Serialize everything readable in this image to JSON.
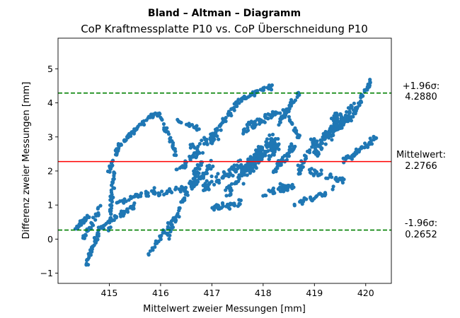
{
  "chart_data": {
    "type": "scatter",
    "title": "Bland – Altman – Diagramm",
    "subtitle": "CoP Kraftmessplatte P10 vs. CoP Überschneidung P10",
    "xlabel": "Mittelwert zweier Messungen [mm]",
    "ylabel": "Differenz zweier Messungen [mm]",
    "xlim": [
      414.0,
      420.5
    ],
    "ylim": [
      -1.3,
      5.9
    ],
    "x_ticks": [
      415,
      416,
      417,
      418,
      419,
      420
    ],
    "y_ticks": [
      -1,
      0,
      1,
      2,
      3,
      4,
      5
    ],
    "grid": false,
    "point_color": "#1f77b4",
    "mean_line": {
      "value": 2.2766,
      "color": "#ff0000",
      "label": "Mittelwert:",
      "value_text": "2.2766"
    },
    "upper_loa": {
      "value": 4.288,
      "color": "#008000",
      "label": "+1.96σ:",
      "value_text": "4.2880"
    },
    "lower_loa": {
      "value": 0.2652,
      "color": "#008000",
      "label": "-1.96σ:",
      "value_text": "0.2652"
    },
    "segments": [
      {
        "from": [
          414.35,
          0.3
        ],
        "to": [
          414.6,
          0.7
        ],
        "n": 25,
        "spread": 0.12
      },
      {
        "from": [
          414.5,
          0.0
        ],
        "to": [
          414.85,
          0.95
        ],
        "n": 30,
        "spread": 0.15
      },
      {
        "from": [
          414.55,
          -0.7
        ],
        "to": [
          414.8,
          0.2
        ],
        "n": 40,
        "spread": 0.12
      },
      {
        "from": [
          414.8,
          0.3
        ],
        "to": [
          415.5,
          1.0
        ],
        "n": 50,
        "spread": 0.1
      },
      {
        "from": [
          415.0,
          0.3
        ],
        "to": [
          415.1,
          2.0
        ],
        "n": 40,
        "spread": 0.12
      },
      {
        "from": [
          415.0,
          2.0
        ],
        "to": [
          415.2,
          2.8
        ],
        "n": 30,
        "spread": 0.12
      },
      {
        "from": [
          415.2,
          2.8
        ],
        "to": [
          415.8,
          3.6
        ],
        "n": 45,
        "spread": 0.1
      },
      {
        "from": [
          415.8,
          3.6
        ],
        "to": [
          416.0,
          3.7
        ],
        "n": 18,
        "spread": 0.1
      },
      {
        "from": [
          416.0,
          3.6
        ],
        "to": [
          416.3,
          2.5
        ],
        "n": 30,
        "spread": 0.15
      },
      {
        "from": [
          415.15,
          1.1
        ],
        "to": [
          415.9,
          1.4
        ],
        "n": 40,
        "spread": 0.12
      },
      {
        "from": [
          415.9,
          1.3
        ],
        "to": [
          416.5,
          1.5
        ],
        "n": 30,
        "spread": 0.12
      },
      {
        "from": [
          415.6,
          -0.8
        ],
        "to": [
          416.2,
          0.5
        ],
        "n": 25,
        "spread": 0.1
      },
      {
        "from": [
          416.1,
          0.0
        ],
        "to": [
          416.8,
          2.3
        ],
        "n": 70,
        "spread": 0.2
      },
      {
        "from": [
          416.3,
          2.0
        ],
        "to": [
          416.8,
          2.6
        ],
        "n": 30,
        "spread": 0.15
      },
      {
        "from": [
          416.3,
          3.5
        ],
        "to": [
          416.8,
          3.2
        ],
        "n": 20,
        "spread": 0.1
      },
      {
        "from": [
          416.6,
          1.5
        ],
        "to": [
          417.0,
          2.2
        ],
        "n": 40,
        "spread": 0.2
      },
      {
        "from": [
          416.6,
          2.7
        ],
        "to": [
          417.1,
          3.0
        ],
        "n": 30,
        "spread": 0.2
      },
      {
        "from": [
          417.0,
          3.0
        ],
        "to": [
          417.5,
          4.0
        ],
        "n": 40,
        "spread": 0.15
      },
      {
        "from": [
          417.5,
          4.0
        ],
        "to": [
          417.8,
          4.3
        ],
        "n": 20,
        "spread": 0.1
      },
      {
        "from": [
          416.8,
          1.5
        ],
        "to": [
          417.6,
          2.2
        ],
        "n": 60,
        "spread": 0.25
      },
      {
        "from": [
          417.0,
          0.9
        ],
        "to": [
          417.6,
          1.1
        ],
        "n": 40,
        "spread": 0.15
      },
      {
        "from": [
          417.3,
          1.4
        ],
        "to": [
          418.2,
          3.0
        ],
        "n": 90,
        "spread": 0.3
      },
      {
        "from": [
          417.6,
          2.0
        ],
        "to": [
          418.3,
          2.8
        ],
        "n": 120,
        "spread": 0.3
      },
      {
        "from": [
          417.6,
          3.2
        ],
        "to": [
          418.1,
          3.6
        ],
        "n": 40,
        "spread": 0.2
      },
      {
        "from": [
          417.8,
          4.3
        ],
        "to": [
          418.2,
          4.5
        ],
        "n": 25,
        "spread": 0.12
      },
      {
        "from": [
          418.1,
          3.6
        ],
        "to": [
          418.4,
          3.8
        ],
        "n": 15,
        "spread": 0.1
      },
      {
        "from": [
          418.0,
          1.3
        ],
        "to": [
          418.6,
          1.6
        ],
        "n": 40,
        "spread": 0.2
      },
      {
        "from": [
          418.2,
          2.0
        ],
        "to": [
          418.6,
          2.7
        ],
        "n": 40,
        "spread": 0.2
      },
      {
        "from": [
          418.3,
          3.4
        ],
        "to": [
          418.7,
          4.3
        ],
        "n": 40,
        "spread": 0.15
      },
      {
        "from": [
          418.4,
          3.8
        ],
        "to": [
          418.7,
          3.0
        ],
        "n": 20,
        "spread": 0.12
      },
      {
        "from": [
          418.7,
          2.0
        ],
        "to": [
          419.0,
          3.0
        ],
        "n": 30,
        "spread": 0.2
      },
      {
        "from": [
          418.6,
          1.0
        ],
        "to": [
          419.4,
          1.5
        ],
        "n": 30,
        "spread": 0.15
      },
      {
        "from": [
          418.9,
          2.0
        ],
        "to": [
          419.6,
          1.7
        ],
        "n": 35,
        "spread": 0.15
      },
      {
        "from": [
          419.0,
          2.5
        ],
        "to": [
          419.5,
          3.7
        ],
        "n": 80,
        "spread": 0.25
      },
      {
        "from": [
          419.2,
          3.0
        ],
        "to": [
          419.7,
          3.6
        ],
        "n": 50,
        "spread": 0.2
      },
      {
        "from": [
          419.6,
          2.3
        ],
        "to": [
          420.2,
          3.0
        ],
        "n": 50,
        "spread": 0.15
      },
      {
        "from": [
          419.7,
          3.5
        ],
        "to": [
          420.1,
          4.65
        ],
        "n": 45,
        "spread": 0.12
      },
      {
        "from": [
          419.3,
          3.0
        ],
        "to": [
          419.8,
          4.0
        ],
        "n": 40,
        "spread": 0.15
      }
    ]
  }
}
